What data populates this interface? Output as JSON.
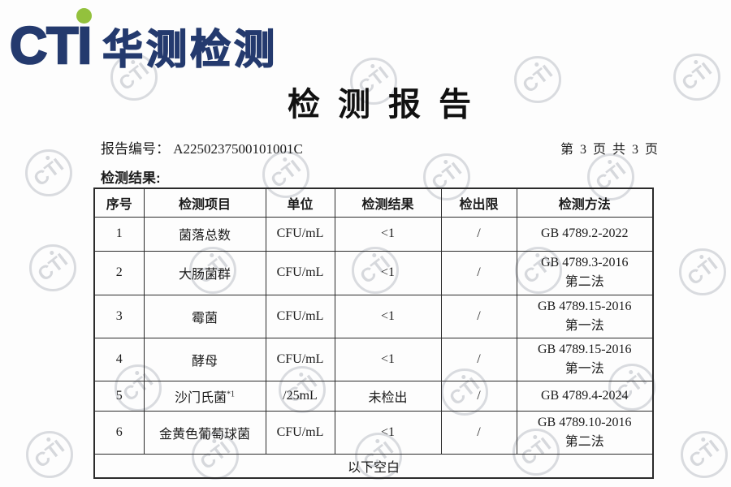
{
  "watermark": {
    "label": "CTI",
    "color": "#c8cad1"
  },
  "logo": {
    "brand": "CTI",
    "brand_color": "#243a6e",
    "dot_color": "#93c13d",
    "company": "华测检测"
  },
  "title": "检 测 报 告",
  "meta": {
    "report_no_label": "报告编号：",
    "report_no": "A2250237500101001C",
    "page_info": "第 3 页 共 3 页"
  },
  "section_label": "检测结果:",
  "table": {
    "headers": [
      "序号",
      "检测项目",
      "单位",
      "检测结果",
      "检出限",
      "检测方法"
    ],
    "rows": [
      {
        "no": "1",
        "item": "菌落总数",
        "item_sup": "",
        "unit": "CFU/mL",
        "result": "<1",
        "limit": "/",
        "method": "GB 4789.2-2022"
      },
      {
        "no": "2",
        "item": "大肠菌群",
        "item_sup": "",
        "unit": "CFU/mL",
        "result": "<1",
        "limit": "/",
        "method": "GB 4789.3-2016\n第二法"
      },
      {
        "no": "3",
        "item": "霉菌",
        "item_sup": "",
        "unit": "CFU/mL",
        "result": "<1",
        "limit": "/",
        "method": "GB 4789.15-2016\n第一法"
      },
      {
        "no": "4",
        "item": "酵母",
        "item_sup": "",
        "unit": "CFU/mL",
        "result": "<1",
        "limit": "/",
        "method": "GB 4789.15-2016\n第一法"
      },
      {
        "no": "5",
        "item": "沙门氏菌",
        "item_sup": "*1",
        "unit": "/25mL",
        "result": "未检出",
        "limit": "/",
        "method": "GB 4789.4-2024"
      },
      {
        "no": "6",
        "item": "金黄色葡萄球菌",
        "item_sup": "",
        "unit": "CFU/mL",
        "result": "<1",
        "limit": "/",
        "method": "GB 4789.10-2016\n第二法"
      }
    ],
    "footer": "以下空白"
  }
}
